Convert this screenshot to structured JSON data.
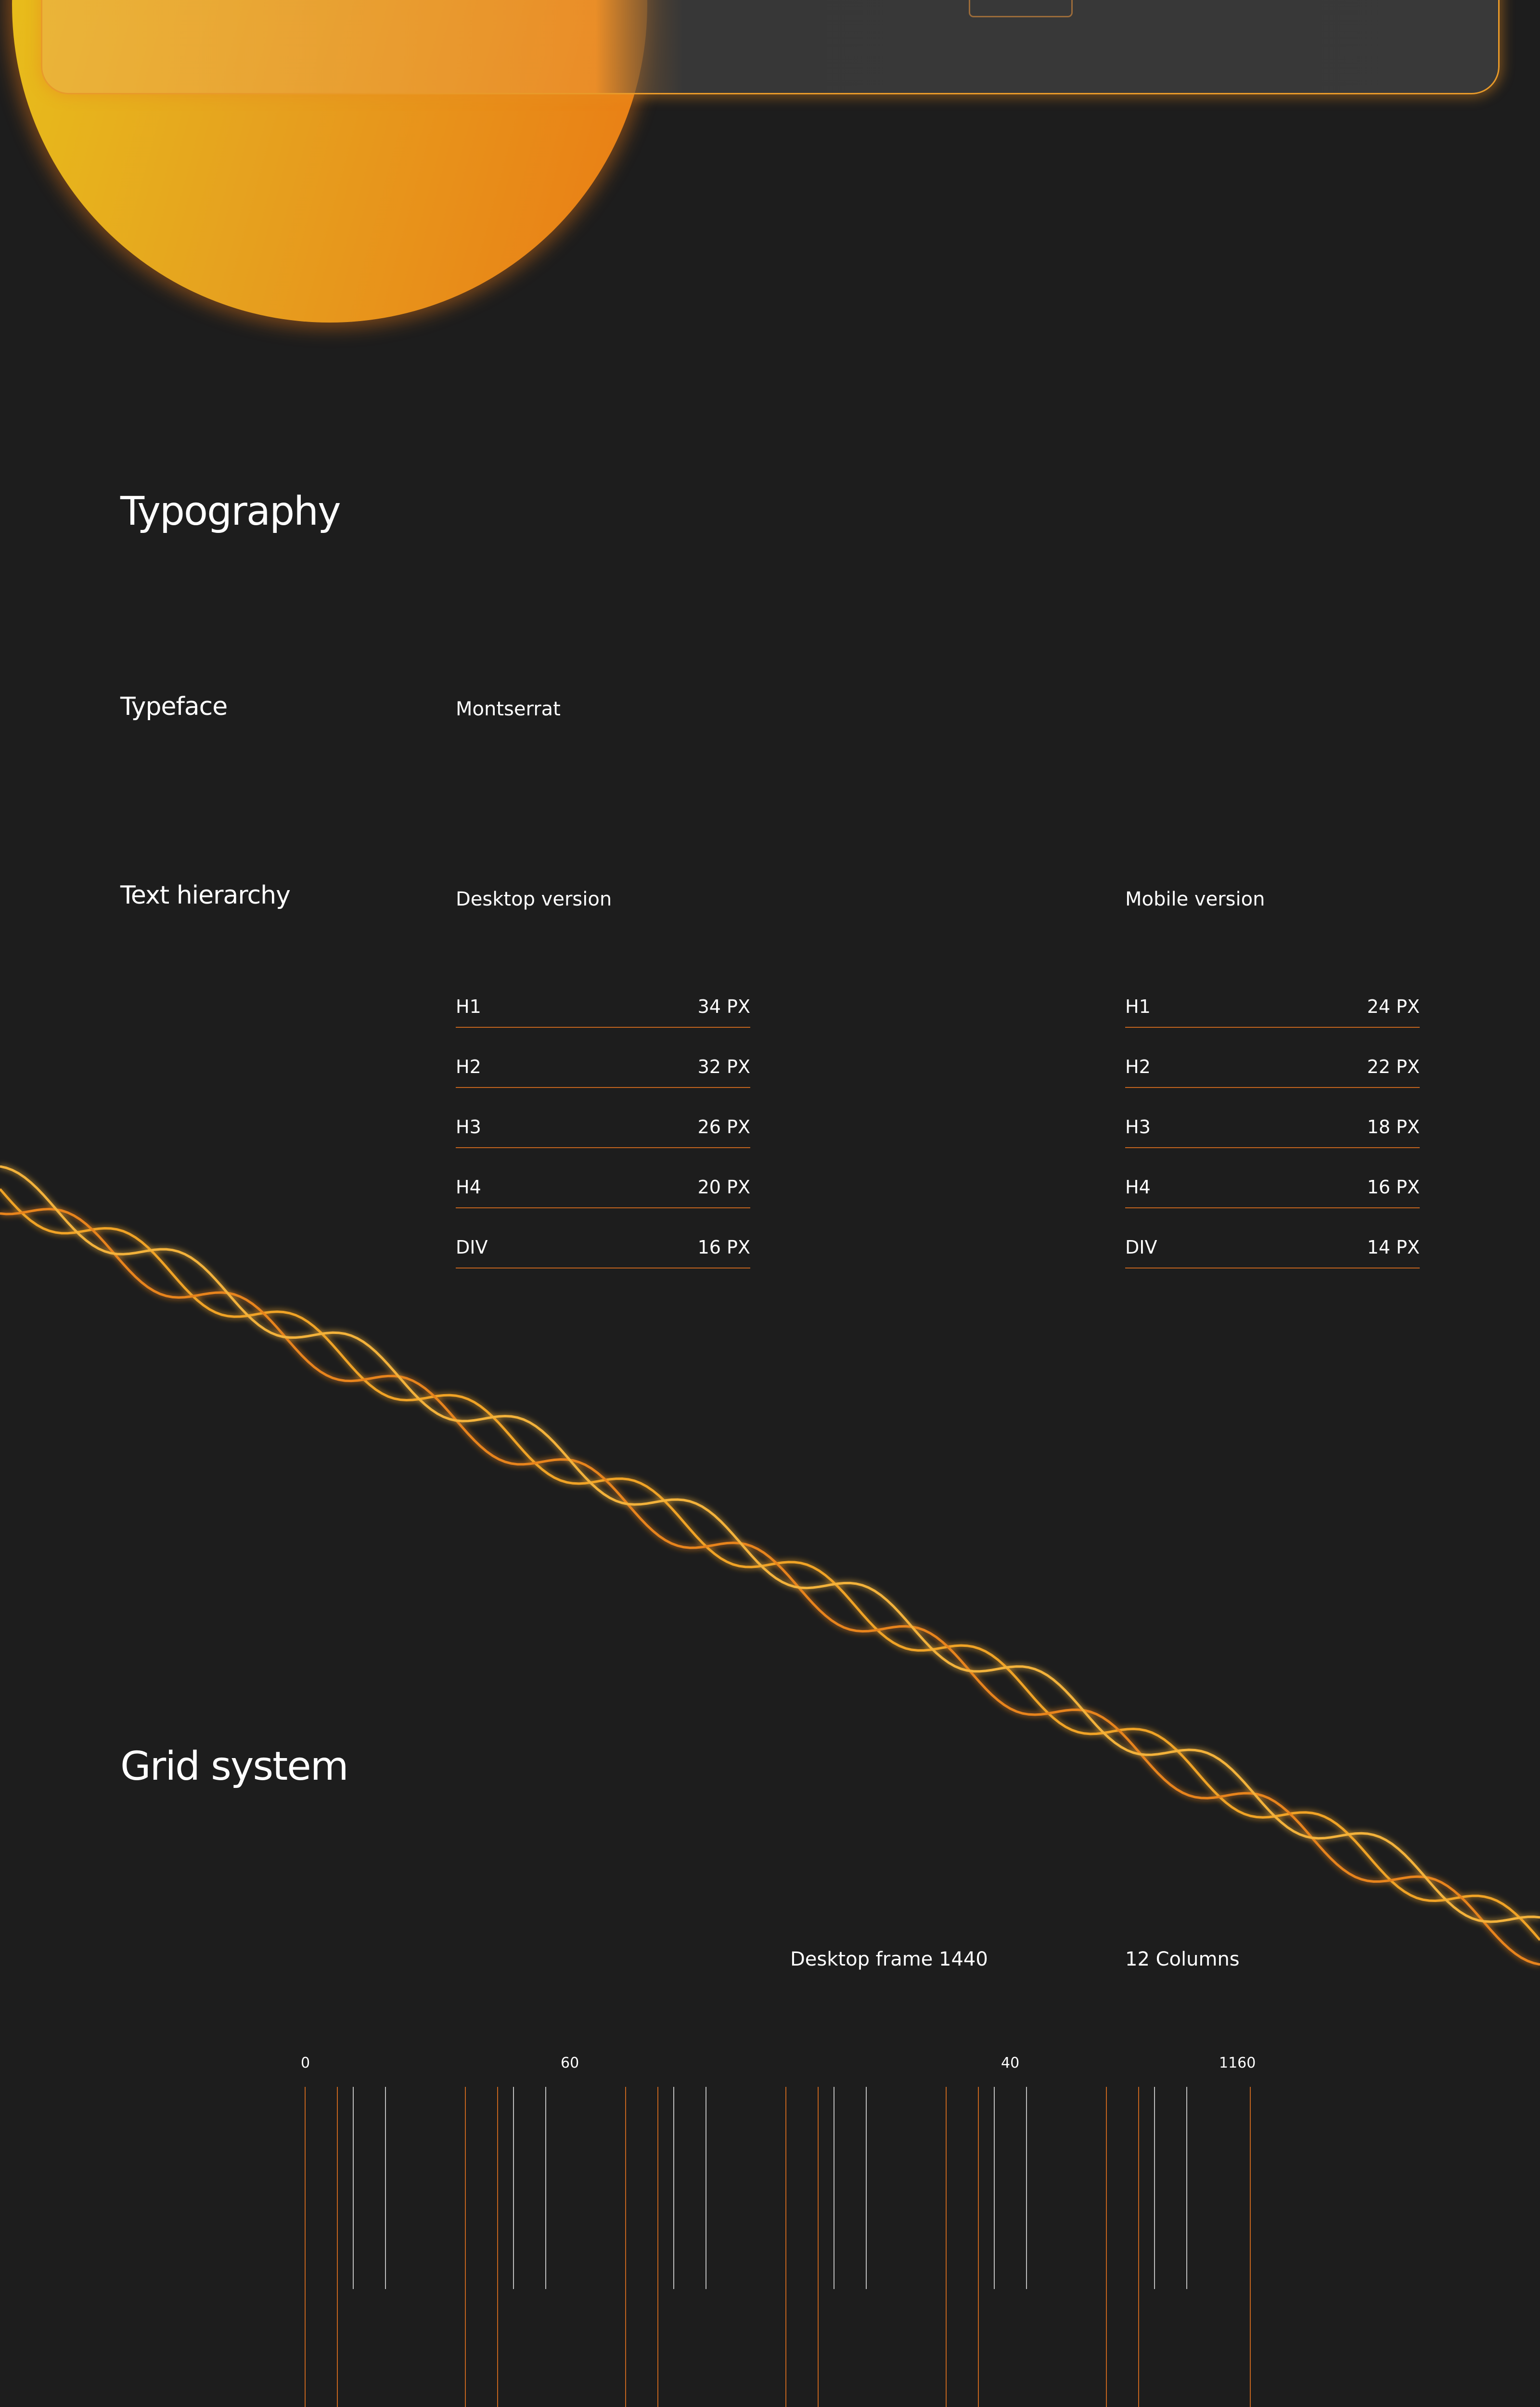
{
  "colors": {
    "background": "#1d1d1d",
    "accent": "#e8841f",
    "sun_start": "#e8c41a",
    "sun_end": "#ea7b14"
  },
  "typography": {
    "title": "Typography",
    "typeface_label": "Typeface",
    "typeface_value": "Montserrat",
    "hierarchy_label": "Text hierarchy",
    "desktop": {
      "title": "Desktop version",
      "rows": [
        {
          "tag": "H1",
          "size": "34 PX"
        },
        {
          "tag": "H2",
          "size": "32 PX"
        },
        {
          "tag": "H3",
          "size": "26 PX"
        },
        {
          "tag": "H4",
          "size": "20 PX"
        },
        {
          "tag": "DIV",
          "size": "16 PX"
        }
      ]
    },
    "mobile": {
      "title": "Mobile version",
      "rows": [
        {
          "tag": "H1",
          "size": "24 PX"
        },
        {
          "tag": "H2",
          "size": "22 PX"
        },
        {
          "tag": "H3",
          "size": "18 PX"
        },
        {
          "tag": "H4",
          "size": "16 PX"
        },
        {
          "tag": "DIV",
          "size": "14 PX"
        }
      ]
    }
  },
  "grid": {
    "title": "Grid system",
    "frame": "Desktop frame 1440",
    "columns": "12 Columns",
    "ticks": [
      "0",
      "60",
      "40",
      "1160"
    ]
  }
}
